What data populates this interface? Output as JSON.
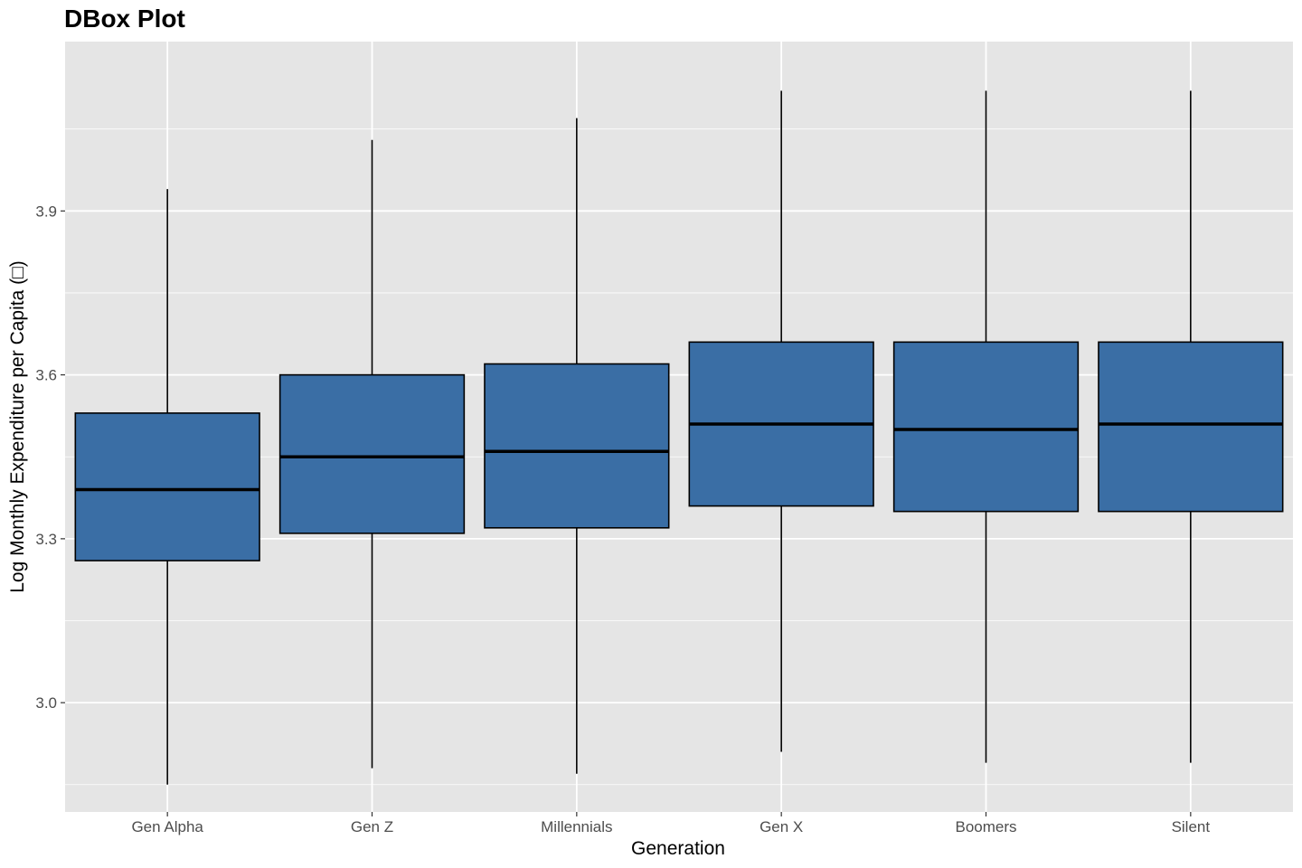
{
  "chart_data": {
    "type": "box",
    "title": "DBox Plot",
    "xlabel": "Generation",
    "ylabel": "Log Monthly Expenditure per Capita (□)",
    "categories": [
      "Gen Alpha",
      "Gen Z",
      "Millennials",
      "Gen X",
      "Boomers",
      "Silent"
    ],
    "boxes": [
      {
        "category": "Gen Alpha",
        "whisker_low": 2.85,
        "q1": 3.26,
        "median": 3.39,
        "q3": 3.53,
        "whisker_high": 3.94
      },
      {
        "category": "Gen Z",
        "whisker_low": 2.88,
        "q1": 3.31,
        "median": 3.45,
        "q3": 3.6,
        "whisker_high": 4.03
      },
      {
        "category": "Millennials",
        "whisker_low": 2.87,
        "q1": 3.32,
        "median": 3.46,
        "q3": 3.62,
        "whisker_high": 4.07
      },
      {
        "category": "Gen X",
        "whisker_low": 2.91,
        "q1": 3.36,
        "median": 3.51,
        "q3": 3.66,
        "whisker_high": 4.12
      },
      {
        "category": "Boomers",
        "whisker_low": 2.89,
        "q1": 3.35,
        "median": 3.5,
        "q3": 3.66,
        "whisker_high": 4.12
      },
      {
        "category": "Silent",
        "whisker_low": 2.89,
        "q1": 3.35,
        "median": 3.51,
        "q3": 3.66,
        "whisker_high": 4.12
      }
    ],
    "yticks": [
      "3.0",
      "3.3",
      "3.6",
      "3.9"
    ],
    "ytick_values": [
      3.0,
      3.3,
      3.6,
      3.9
    ],
    "ylim": [
      2.8,
      4.21
    ],
    "grid": true,
    "legend": "none",
    "colors": {
      "panel_background": "#e5e5e5",
      "grid_major": "#ffffff",
      "box_fill": "#3a6ea5",
      "box_stroke": "#000000",
      "tick_text": "#4d4d4d"
    }
  }
}
